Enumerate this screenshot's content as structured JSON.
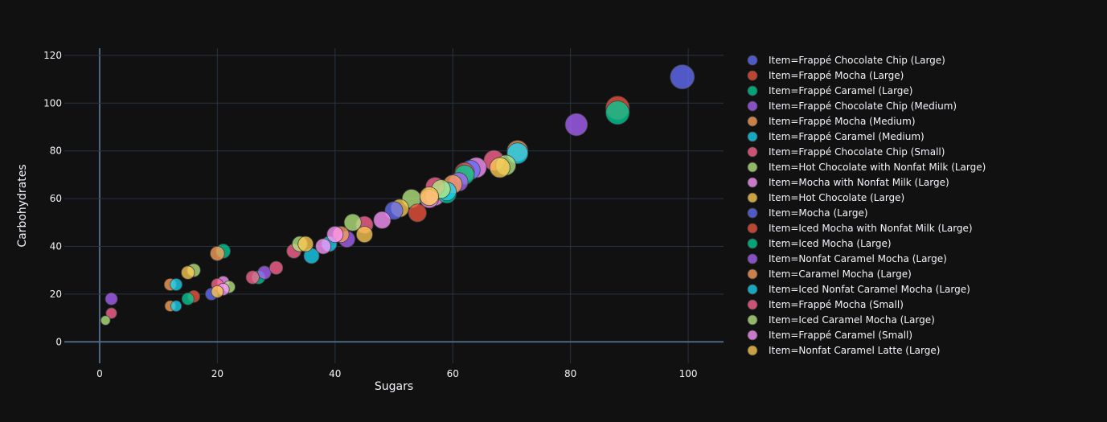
{
  "chart_data": {
    "type": "scatter",
    "title": "",
    "xlabel": "Sugars",
    "ylabel": "Carbohydrates",
    "xlim": [
      -6,
      106
    ],
    "ylim": [
      -9,
      123
    ],
    "xticks": [
      0,
      20,
      40,
      60,
      80,
      100
    ],
    "yticks": [
      0,
      20,
      40,
      60,
      80,
      100,
      120
    ],
    "grid": true,
    "legend_position": "right",
    "series": [
      {
        "name": "Item=Frappé Chocolate Chip (Large)",
        "color": "#636efa",
        "points": [
          [
            99,
            111,
            1
          ]
        ]
      },
      {
        "name": "Item=Frappé Mocha (Large)",
        "color": "#EF553B",
        "points": [
          [
            88,
            98,
            0.95
          ]
        ]
      },
      {
        "name": "Item=Frappé Caramel (Large)",
        "color": "#00cc96",
        "points": [
          [
            88,
            96,
            0.95
          ]
        ]
      },
      {
        "name": "Item=Frappé Chocolate Chip (Medium)",
        "color": "#ab63fa",
        "points": [
          [
            81,
            91,
            0.85
          ]
        ]
      },
      {
        "name": "Item=Frappé Mocha (Medium)",
        "color": "#FFA15A",
        "points": [
          [
            71,
            80,
            0.75
          ]
        ]
      },
      {
        "name": "Item=Frappé Caramel (Medium)",
        "color": "#19d3f3",
        "points": [
          [
            71,
            79,
            0.75
          ]
        ]
      },
      {
        "name": "Item=Frappé Chocolate Chip (Small)",
        "color": "#FF6692",
        "points": [
          [
            67,
            76,
            0.7
          ]
        ]
      },
      {
        "name": "Item=Hot Chocolate with Nonfat Milk (Large)",
        "color": "#B6E880",
        "points": [
          [
            69,
            74,
            0.7
          ],
          [
            53,
            60,
            0.6
          ],
          [
            16,
            30,
            0.3
          ]
        ]
      },
      {
        "name": "Item=Mocha with Nonfat Milk (Large)",
        "color": "#FF97FF",
        "points": [
          [
            64,
            73,
            0.7
          ],
          [
            57,
            61,
            0.6
          ],
          [
            21,
            25,
            0.25
          ]
        ]
      },
      {
        "name": "Item=Hot Chocolate (Large)",
        "color": "#FECB52",
        "points": [
          [
            68,
            73,
            0.7
          ],
          [
            51,
            56,
            0.55
          ],
          [
            15,
            29,
            0.3
          ]
        ]
      },
      {
        "name": "Item=Mocha (Large)",
        "color": "#636efa",
        "points": [
          [
            63,
            72,
            0.65
          ],
          [
            50,
            55,
            0.55
          ],
          [
            19,
            20,
            0.25
          ]
        ]
      },
      {
        "name": "Item=Iced Mocha with Nonfat Milk (Large)",
        "color": "#EF553B",
        "points": [
          [
            62,
            71,
            0.65
          ],
          [
            54,
            54,
            0.55
          ],
          [
            16,
            19,
            0.25
          ]
        ]
      },
      {
        "name": "Item=Iced Mocha (Large)",
        "color": "#00cc96",
        "points": [
          [
            62,
            70,
            0.65
          ],
          [
            59,
            62,
            0.6
          ],
          [
            21,
            38,
            0.35
          ],
          [
            27,
            27,
            0.3
          ],
          [
            15,
            18,
            0.25
          ]
        ]
      },
      {
        "name": "Item=Nonfat Caramel Mocha (Large)",
        "color": "#ab63fa",
        "points": [
          [
            61,
            67,
            0.6
          ],
          [
            42,
            43,
            0.45
          ],
          [
            28,
            29,
            0.3
          ],
          [
            2,
            18,
            0.25
          ]
        ]
      },
      {
        "name": "Item=Caramel Mocha (Large)",
        "color": "#FFA15A",
        "points": [
          [
            60,
            66,
            0.6
          ],
          [
            41,
            45,
            0.45
          ],
          [
            20,
            37,
            0.35
          ],
          [
            12,
            24,
            0.25
          ],
          [
            12,
            15,
            0.2
          ]
        ]
      },
      {
        "name": "Item=Iced Nonfat Caramel Mocha (Large)",
        "color": "#19d3f3",
        "points": [
          [
            59,
            63,
            0.6
          ],
          [
            39,
            41,
            0.4
          ],
          [
            36,
            36,
            0.4
          ],
          [
            13,
            24,
            0.25
          ],
          [
            13,
            15,
            0.2
          ]
        ]
      },
      {
        "name": "Item=Frappé Mocha (Small)",
        "color": "#FF6692",
        "points": [
          [
            57,
            65,
            0.6
          ],
          [
            45,
            49,
            0.5
          ],
          [
            33,
            38,
            0.35
          ],
          [
            30,
            31,
            0.3
          ],
          [
            26,
            27,
            0.3
          ],
          [
            20,
            24,
            0.25
          ],
          [
            2,
            12,
            0.2
          ]
        ]
      },
      {
        "name": "Item=Iced Caramel Mocha (Large)",
        "color": "#B6E880",
        "points": [
          [
            58,
            64,
            0.6
          ],
          [
            43,
            50,
            0.5
          ],
          [
            34,
            41,
            0.4
          ],
          [
            22,
            23,
            0.25
          ],
          [
            1,
            9,
            0.15
          ]
        ]
      },
      {
        "name": "Item=Frappé Caramel (Small)",
        "color": "#FF97FF",
        "points": [
          [
            56,
            60,
            0.6
          ],
          [
            48,
            51,
            0.5
          ],
          [
            40,
            45,
            0.45
          ],
          [
            38,
            40,
            0.4
          ],
          [
            21,
            22,
            0.25
          ]
        ]
      },
      {
        "name": "Item=Nonfat Caramel Latte (Large)",
        "color": "#FECB52",
        "points": [
          [
            56,
            61,
            0.6
          ],
          [
            45,
            45,
            0.45
          ],
          [
            35,
            41,
            0.4
          ],
          [
            20,
            21,
            0.25
          ]
        ]
      }
    ]
  }
}
